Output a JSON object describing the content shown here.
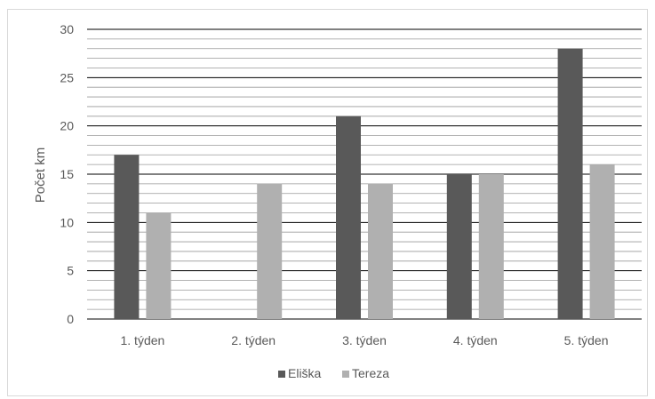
{
  "chart_data": {
    "type": "bar",
    "title": "",
    "xlabel": "",
    "ylabel": "Počet km",
    "categories": [
      "1. týden",
      "2. týden",
      "3. týden",
      "4. týden",
      "5. týden"
    ],
    "series": [
      {
        "name": "Eliška",
        "values": [
          17,
          0,
          21,
          15,
          28
        ],
        "color": "#595959"
      },
      {
        "name": "Tereza",
        "values": [
          11,
          14,
          14,
          15,
          16
        ],
        "color": "#b0b0b0"
      }
    ],
    "ylim": [
      0,
      30
    ],
    "yticks": [
      "0",
      "5",
      "10",
      "15",
      "20",
      "25",
      "30"
    ],
    "major_step": 5,
    "minor_step": 1,
    "grid": true,
    "legend_position": "bottom"
  }
}
